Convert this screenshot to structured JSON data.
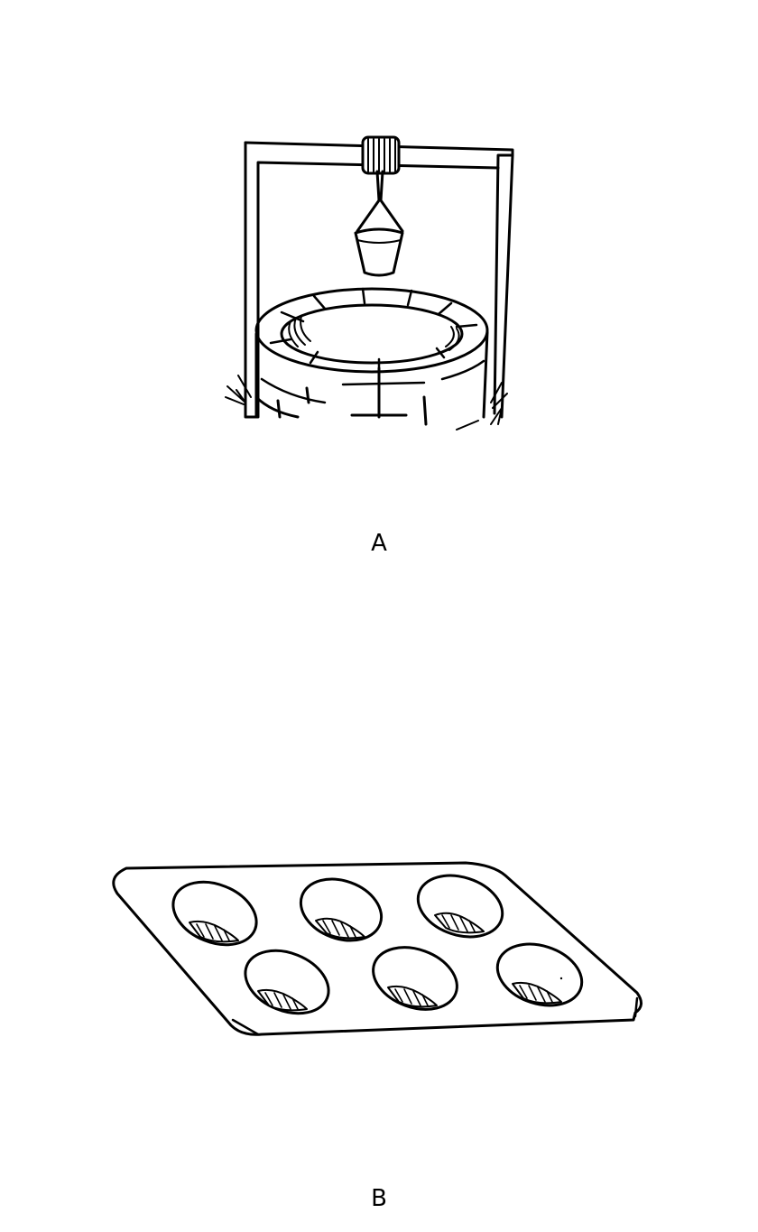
{
  "figures": [
    {
      "label": "A",
      "icon": "water-well-with-bucket-icon"
    },
    {
      "label": "B",
      "icon": "six-cup-muffin-tray-icon"
    }
  ],
  "colors": {
    "ink": "#000000",
    "paper": "#ffffff"
  }
}
